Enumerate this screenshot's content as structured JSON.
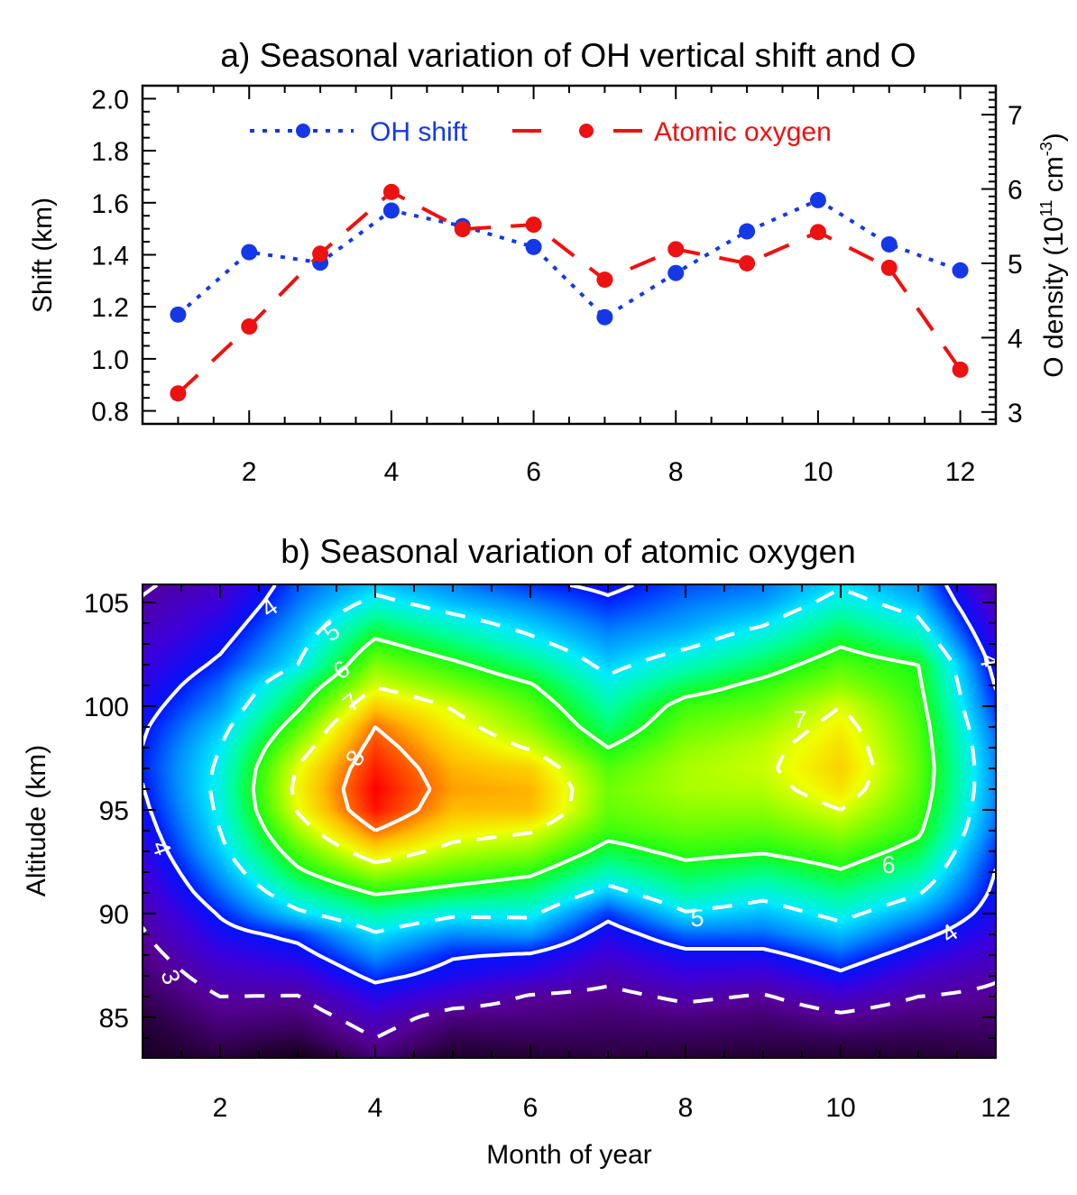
{
  "chart_data": [
    {
      "type": "line",
      "title": "a) Seasonal variation of OH vertical shift and O",
      "xlabel": "",
      "ylabel": "Shift (km)",
      "ylabel_right": "O density (10",
      "ylabel_right_exp1": "11",
      "ylabel_right_mid": " cm",
      "ylabel_right_exp2": "-3",
      "ylabel_right_end": ")",
      "xlim": [
        0.5,
        12.5
      ],
      "ylim": [
        0.75,
        2.05
      ],
      "ylim_right": [
        2.84,
        7.39
      ],
      "x_ticks": [
        2,
        4,
        6,
        8,
        10,
        12
      ],
      "x_tick_labels": [
        "2",
        "4",
        "6",
        "8",
        "10",
        "12"
      ],
      "y_ticks": [
        0.8,
        1.0,
        1.2,
        1.4,
        1.6,
        1.8,
        2.0
      ],
      "y_tick_labels": [
        "0.8",
        "1.0",
        "1.2",
        "1.4",
        "1.6",
        "1.8",
        "2.0"
      ],
      "y_ticks_right": [
        3,
        4,
        5,
        6,
        7
      ],
      "y_tick_labels_right": [
        "3",
        "4",
        "5",
        "6",
        "7"
      ],
      "legend_position": "top",
      "x": [
        1,
        2,
        3,
        4,
        5,
        6,
        7,
        8,
        9,
        10,
        11,
        12
      ],
      "series": [
        {
          "name": "OH shift",
          "axis": "left",
          "style": "dotted",
          "color": "#1538e6",
          "values": [
            1.17,
            1.41,
            1.37,
            1.57,
            1.51,
            1.43,
            1.16,
            1.33,
            1.49,
            1.61,
            1.44,
            1.34
          ]
        },
        {
          "name": "Atomic oxygen",
          "axis": "right",
          "style": "dashed",
          "color": "#ee1111",
          "values": [
            3.25,
            4.15,
            5.13,
            5.96,
            5.46,
            5.52,
            4.78,
            5.19,
            5.0,
            5.42,
            4.94,
            3.57
          ]
        }
      ]
    },
    {
      "type": "heatmap",
      "title": "b) Seasonal variation of atomic oxygen",
      "xlabel": "Month of year",
      "ylabel": "Altitude (km)",
      "xlim": [
        1,
        12
      ],
      "ylim": [
        83.04,
        105.87
      ],
      "x_ticks": [
        2,
        4,
        6,
        8,
        10,
        12
      ],
      "x_tick_labels": [
        "2",
        "4",
        "6",
        "8",
        "10",
        "12"
      ],
      "y_ticks": [
        85,
        90,
        95,
        100,
        105
      ],
      "y_tick_labels": [
        "85",
        "90",
        "95",
        "100",
        "105"
      ],
      "units": "10^11 cm^-3",
      "months": [
        1,
        2,
        3,
        4,
        5,
        6,
        7,
        8,
        9,
        10,
        11,
        12
      ],
      "altitudes": [
        83,
        84,
        85,
        86,
        87,
        88,
        89,
        90,
        91,
        92,
        93,
        94,
        95,
        96,
        97,
        98,
        99,
        100,
        101,
        102,
        103,
        104,
        105,
        106
      ],
      "z_by_month": [
        [
          2.0,
          2.15,
          2.3,
          2.5,
          2.65,
          2.8,
          2.95,
          3.1,
          3.3,
          3.45,
          3.6,
          3.75,
          3.88,
          3.98,
          4.05,
          4.01,
          3.93,
          3.8,
          3.65,
          3.5,
          3.35,
          3.2,
          3.05,
          2.9
        ],
        [
          2.3,
          2.55,
          2.78,
          3.0,
          3.25,
          3.5,
          3.8,
          4.05,
          4.35,
          4.6,
          4.85,
          5.0,
          5.1,
          5.15,
          5.1,
          5.0,
          4.8,
          4.55,
          4.35,
          4.1,
          3.9,
          3.7,
          3.5,
          3.3
        ],
        [
          1.9,
          2.4,
          2.7,
          2.98,
          3.4,
          3.8,
          4.15,
          4.9,
          5.4,
          5.9,
          6.3,
          6.7,
          7.05,
          7.15,
          7.05,
          6.7,
          6.3,
          5.9,
          5.55,
          5.0,
          4.8,
          4.6,
          4.4,
          4.25
        ],
        [
          2.65,
          3.0,
          3.3,
          3.7,
          4.15,
          4.55,
          4.95,
          5.45,
          6.05,
          6.7,
          7.35,
          8.0,
          8.5,
          8.6,
          8.45,
          8.25,
          8.0,
          7.5,
          6.95,
          6.55,
          6.12,
          5.65,
          5.15,
          4.75
        ],
        [
          2.1,
          2.45,
          2.75,
          3.35,
          3.8,
          4.05,
          4.5,
          5.1,
          5.8,
          6.35,
          6.8,
          7.25,
          7.6,
          7.75,
          7.65,
          7.45,
          7.2,
          6.95,
          6.5,
          6.1,
          5.65,
          5.2,
          4.75,
          4.4
        ],
        [
          2.2,
          2.5,
          2.75,
          2.95,
          3.55,
          3.95,
          4.6,
          5.1,
          5.6,
          6.1,
          6.6,
          7.05,
          7.6,
          7.65,
          7.45,
          6.95,
          6.6,
          6.35,
          6.05,
          5.6,
          5.15,
          4.8,
          4.45,
          4.05
        ],
        [
          2.3,
          2.5,
          2.65,
          2.85,
          3.15,
          3.45,
          3.75,
          4.15,
          4.8,
          5.35,
          5.8,
          6.2,
          6.4,
          6.45,
          6.3,
          6.0,
          5.65,
          5.4,
          5.15,
          4.85,
          4.6,
          4.35,
          4.08,
          3.85
        ],
        [
          2.25,
          2.5,
          2.75,
          3.1,
          3.5,
          3.85,
          4.35,
          4.95,
          5.45,
          5.8,
          6.15,
          6.4,
          6.6,
          6.75,
          6.75,
          6.6,
          6.4,
          6.2,
          5.75,
          5.3,
          4.9,
          4.6,
          4.4,
          4.2
        ],
        [
          2.2,
          2.45,
          2.65,
          2.95,
          3.4,
          3.85,
          4.35,
          4.75,
          5.15,
          5.6,
          6.05,
          6.35,
          6.6,
          6.8,
          6.9,
          6.85,
          6.65,
          6.4,
          6.15,
          5.75,
          5.35,
          4.95,
          4.6,
          4.35
        ],
        [
          2.2,
          2.5,
          2.9,
          3.35,
          3.9,
          4.3,
          4.75,
          5.15,
          5.55,
          5.95,
          6.3,
          6.65,
          7.0,
          7.3,
          7.45,
          7.35,
          7.2,
          7.0,
          6.6,
          6.3,
          5.95,
          5.6,
          5.2,
          4.9
        ],
        [
          2.2,
          2.45,
          2.7,
          3.0,
          3.35,
          3.75,
          4.15,
          4.6,
          5.05,
          5.45,
          5.8,
          6.1,
          6.25,
          6.35,
          6.4,
          6.35,
          6.3,
          6.2,
          6.1,
          6.0,
          5.5,
          5.1,
          4.75,
          4.5
        ],
        [
          2.3,
          2.5,
          2.7,
          2.9,
          3.05,
          3.3,
          3.55,
          3.75,
          3.88,
          3.98,
          4.12,
          4.3,
          4.42,
          4.48,
          4.48,
          4.42,
          4.3,
          4.12,
          3.97,
          3.8,
          3.6,
          3.4,
          3.2,
          3.0
        ]
      ],
      "contour_levels": [
        3,
        4,
        5,
        6,
        7,
        8
      ],
      "contour_styles": [
        "dashed",
        "solid",
        "dashed",
        "solid",
        "dashed",
        "solid"
      ],
      "contour_labels": [
        {
          "level": 4,
          "text": "4"
        },
        {
          "level": 4,
          "text": "4"
        },
        {
          "level": 4,
          "text": "4"
        },
        {
          "level": 4,
          "text": "4"
        },
        {
          "level": 5,
          "text": "5"
        },
        {
          "level": 5,
          "text": "5"
        },
        {
          "level": 6,
          "text": "6"
        },
        {
          "level": 6,
          "text": "6"
        },
        {
          "level": 7,
          "text": "7"
        },
        {
          "level": 7,
          "text": "7"
        },
        {
          "level": 8,
          "text": "8"
        },
        {
          "level": 3,
          "text": "3"
        }
      ],
      "colormap": "rainbow"
    }
  ]
}
